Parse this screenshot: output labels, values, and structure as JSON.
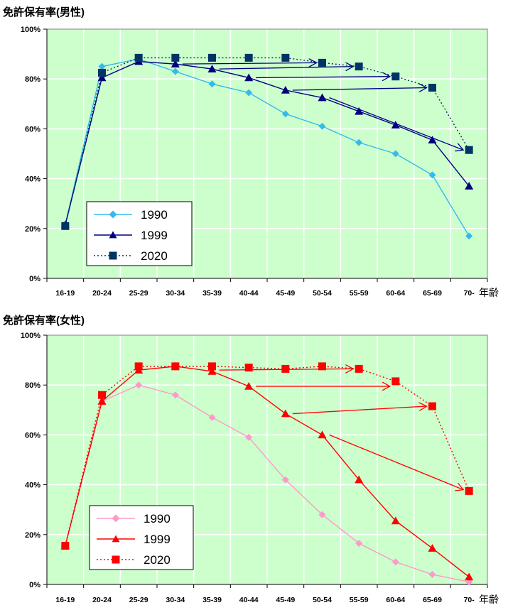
{
  "chart_data": [
    {
      "type": "line",
      "title": "免許保有率(男性)",
      "xlabel": "年齢",
      "ylabel": "",
      "categories": [
        "16-19",
        "20-24",
        "25-29",
        "30-34",
        "35-39",
        "40-44",
        "45-49",
        "50-54",
        "55-59",
        "60-64",
        "65-69",
        "70-"
      ],
      "yticks": [
        "0%",
        "20%",
        "40%",
        "60%",
        "80%",
        "100%"
      ],
      "ylim": [
        0,
        100
      ],
      "grid": true,
      "legend_position": "bottom-left",
      "series": [
        {
          "name": "1990",
          "color": "#33bbee",
          "marker": "diamond",
          "dash": "solid",
          "values": [
            21.5,
            85,
            88,
            83,
            78,
            74.5,
            66,
            61,
            54.5,
            50,
            41.5,
            17
          ]
        },
        {
          "name": "1999",
          "color": "#000080",
          "marker": "triangle",
          "dash": "solid",
          "values": [
            21.5,
            80.5,
            87,
            86,
            84,
            80.5,
            75.5,
            72.5,
            67,
            61.5,
            55.5,
            37
          ]
        },
        {
          "name": "2020",
          "color": "#003366",
          "marker": "square",
          "dash": "dotted",
          "values": [
            21,
            82.5,
            88.5,
            88.5,
            88.5,
            88.5,
            88.5,
            86.5,
            85,
            81,
            76.5,
            51.5
          ]
        }
      ],
      "arrows": [
        {
          "from": [
            "30-34",
            86
          ],
          "to": [
            "50-54",
            86.5
          ]
        },
        {
          "from": [
            "35-39",
            84
          ],
          "to": [
            "55-59",
            85
          ]
        },
        {
          "from": [
            "40-44",
            80.5
          ],
          "to": [
            "60-64",
            81
          ]
        },
        {
          "from": [
            "45-49",
            75.5
          ],
          "to": [
            "65-69",
            76.5
          ]
        },
        {
          "from": [
            "50-54",
            72.5
          ],
          "to": [
            "70-",
            51.5
          ]
        }
      ]
    },
    {
      "type": "line",
      "title": "免許保有率(女性)",
      "xlabel": "年齢",
      "ylabel": "",
      "categories": [
        "16-19",
        "20-24",
        "25-29",
        "30-34",
        "35-39",
        "40-44",
        "45-49",
        "50-54",
        "55-59",
        "60-64",
        "65-69",
        "70-"
      ],
      "yticks": [
        "0%",
        "20%",
        "40%",
        "60%",
        "80%",
        "100%"
      ],
      "ylim": [
        0,
        100
      ],
      "grid": true,
      "legend_position": "bottom-left",
      "series": [
        {
          "name": "1990",
          "color": "#ff99cc",
          "marker": "diamond",
          "dash": "solid",
          "values": [
            15.5,
            73.5,
            80,
            76,
            67,
            59,
            42,
            28,
            16.5,
            9,
            4,
            1
          ]
        },
        {
          "name": "1999",
          "color": "#ff0000",
          "marker": "triangle",
          "dash": "solid",
          "values": [
            15.5,
            73.5,
            86,
            87.5,
            85.5,
            79.5,
            68.5,
            60,
            42,
            25.5,
            14.5,
            3
          ]
        },
        {
          "name": "2020",
          "color": "#ff0000",
          "marker": "square",
          "dash": "dotted",
          "values": [
            15.5,
            76,
            87.5,
            87.5,
            87.5,
            87,
            86.5,
            87.5,
            86.5,
            81.5,
            71.5,
            37.5
          ]
        }
      ],
      "arrows": [
        {
          "from": [
            "35-39",
            86
          ],
          "to": [
            "55-59",
            86.5
          ]
        },
        {
          "from": [
            "40-44",
            79.5
          ],
          "to": [
            "60-64",
            79.5
          ]
        },
        {
          "from": [
            "45-49",
            68.5
          ],
          "to": [
            "65-69",
            71.5
          ]
        },
        {
          "from": [
            "50-54",
            60
          ],
          "to": [
            "70-",
            38
          ]
        }
      ]
    }
  ]
}
